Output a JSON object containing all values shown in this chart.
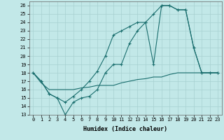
{
  "xlabel": "Humidex (Indice chaleur)",
  "bg_color": "#c2e8e8",
  "grid_color": "#a8d0d0",
  "line_color": "#1a6e6e",
  "xlim": [
    -0.5,
    23.5
  ],
  "ylim": [
    13,
    26.5
  ],
  "yticks": [
    13,
    14,
    15,
    16,
    17,
    18,
    19,
    20,
    21,
    22,
    23,
    24,
    25,
    26
  ],
  "xticks": [
    0,
    1,
    2,
    3,
    4,
    5,
    6,
    7,
    8,
    9,
    10,
    11,
    12,
    13,
    14,
    15,
    16,
    17,
    18,
    19,
    20,
    21,
    22,
    23
  ],
  "line1_x": [
    0,
    1,
    2,
    3,
    4,
    5,
    6,
    7,
    8,
    9,
    10,
    11,
    12,
    13,
    14,
    15,
    16,
    17,
    18,
    19,
    20,
    21,
    22,
    23
  ],
  "line1_y": [
    18,
    17,
    15.5,
    15,
    13,
    14.5,
    15,
    15.2,
    16,
    18,
    19,
    19,
    21.5,
    23,
    24,
    19,
    26,
    26,
    25.5,
    25.5,
    21,
    18,
    18,
    18
  ],
  "line2_x": [
    0,
    1,
    2,
    3,
    4,
    5,
    6,
    7,
    8,
    9,
    10,
    11,
    12,
    13,
    14,
    15,
    16,
    17,
    18,
    19,
    20,
    21,
    22,
    23
  ],
  "line2_y": [
    18,
    17,
    15.5,
    15,
    14.5,
    15.2,
    16,
    17,
    18.2,
    20,
    22.5,
    23,
    23.5,
    24,
    24,
    25,
    26,
    26,
    25.5,
    25.5,
    21,
    18,
    18,
    18
  ],
  "line3_x": [
    0,
    1,
    2,
    3,
    4,
    5,
    6,
    7,
    8,
    9,
    10,
    11,
    12,
    13,
    14,
    15,
    16,
    17,
    18,
    19,
    20,
    21,
    22,
    23
  ],
  "line3_y": [
    18,
    16.8,
    16,
    16,
    16,
    16,
    16.2,
    16.3,
    16.5,
    16.5,
    16.5,
    16.8,
    17,
    17.2,
    17.3,
    17.5,
    17.5,
    17.8,
    18,
    18,
    18,
    18,
    18,
    18
  ]
}
